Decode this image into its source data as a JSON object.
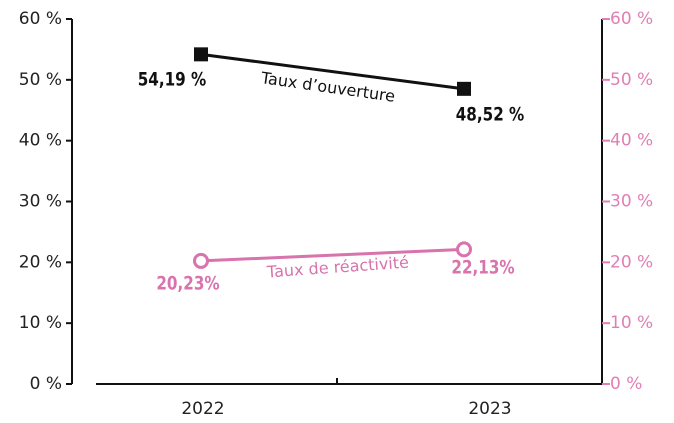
{
  "chart_data": {
    "type": "line",
    "categories": [
      "2022",
      "2023"
    ],
    "series": [
      {
        "name": "Taux d’ouverture",
        "color": "#111111",
        "marker": "square",
        "values": [
          54.19,
          48.52
        ],
        "value_labels": [
          "54,19 %",
          "48,52 %"
        ]
      },
      {
        "name": "Taux de réactivité",
        "color": "#d873ad",
        "marker": "open-circle",
        "axis": "y2",
        "values": [
          20.23,
          22.13
        ],
        "value_labels": [
          "20,23%",
          "22,13%"
        ]
      }
    ],
    "ylim": [
      0,
      60
    ],
    "yticks": [
      {
        "value": 0,
        "label": "0 %"
      },
      {
        "value": 10,
        "label": "10 %"
      },
      {
        "value": 20,
        "label": "20 %"
      },
      {
        "value": 30,
        "label": "30 %"
      },
      {
        "value": 40,
        "label": "40 %"
      },
      {
        "value": 50,
        "label": "50 %"
      },
      {
        "value": 60,
        "label": "60 %"
      }
    ],
    "y2lim": [
      0,
      60
    ],
    "y2ticks": [
      {
        "value": 0,
        "label": "0 %"
      },
      {
        "value": 10,
        "label": "10 %"
      },
      {
        "value": 20,
        "label": "20 %"
      },
      {
        "value": 30,
        "label": "30 %"
      },
      {
        "value": 40,
        "label": "40 %"
      },
      {
        "value": 50,
        "label": "50 %"
      },
      {
        "value": 60,
        "label": "60 %"
      }
    ],
    "y2color": "#e07fb4"
  }
}
